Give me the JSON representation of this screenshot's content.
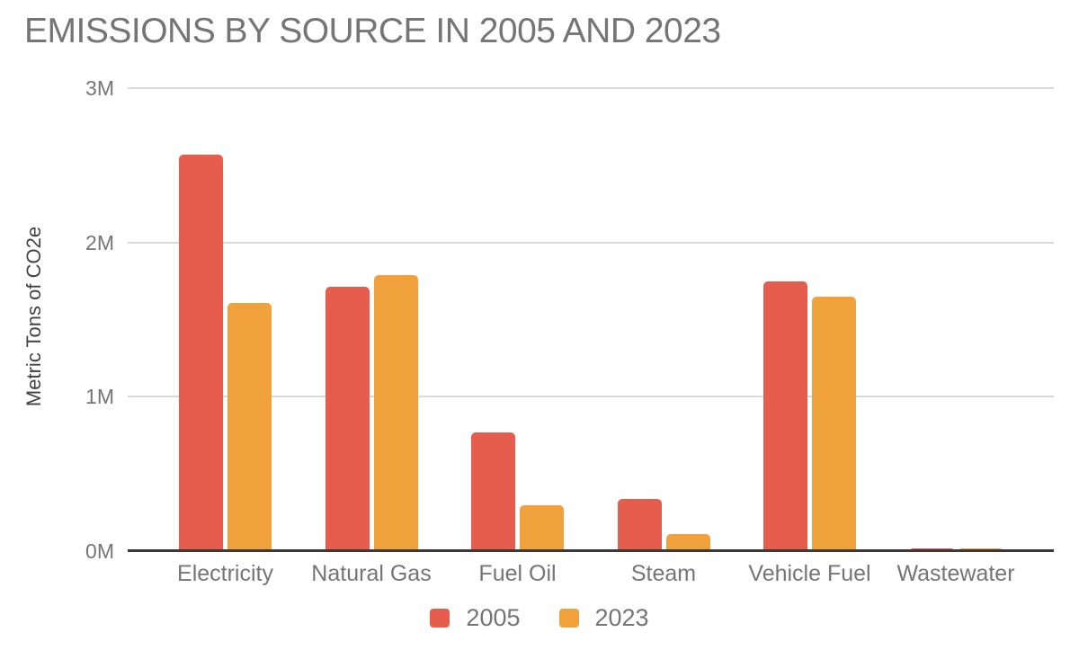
{
  "chart_data": {
    "type": "bar",
    "title": "EMISSIONS BY SOURCE IN 2005 AND 2023",
    "xlabel": "",
    "ylabel": "Metric Tons of CO2e",
    "categories": [
      "Electricity",
      "Natural Gas",
      "Fuel Oil",
      "Steam",
      "Vehicle Fuel",
      "Wastewater"
    ],
    "series": [
      {
        "name": "2005",
        "color": "#e65c4d",
        "values": [
          2570000,
          1710000,
          770000,
          340000,
          1750000,
          20000
        ]
      },
      {
        "name": "2023",
        "color": "#f0a13c",
        "values": [
          1610000,
          1790000,
          300000,
          110000,
          1650000,
          20000
        ]
      }
    ],
    "ylim": [
      0,
      3000000
    ],
    "yticks": [
      {
        "value": 0,
        "label": "0M"
      },
      {
        "value": 1000000,
        "label": "1M"
      },
      {
        "value": 2000000,
        "label": "2M"
      },
      {
        "value": 3000000,
        "label": "3M"
      }
    ],
    "grid": true,
    "legend_position": "bottom",
    "colors": {
      "axis_line": "#3a3a3a",
      "gridline": "#d9d9d9",
      "label_text": "#757575",
      "axis_title_text": "#424242"
    }
  }
}
